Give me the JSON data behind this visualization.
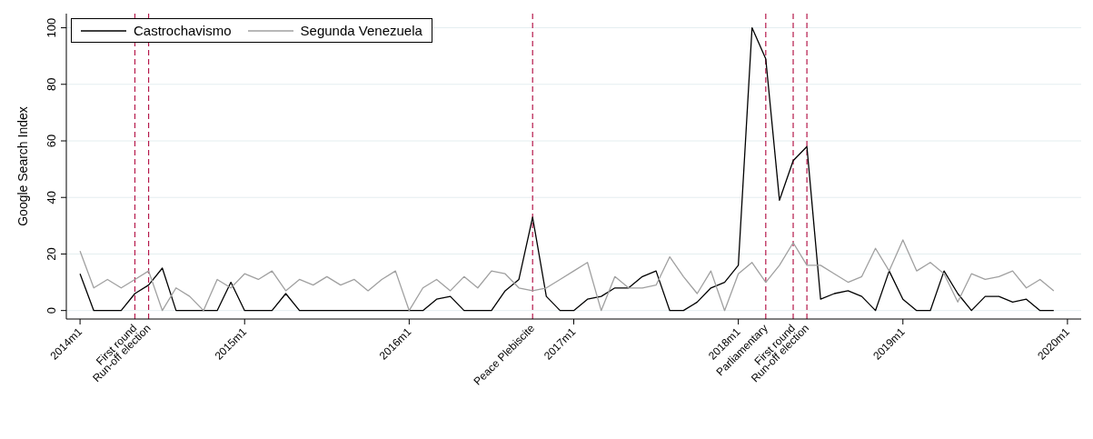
{
  "chart_data": {
    "type": "line",
    "ylabel": "Google Search Index",
    "x": [
      "2014-01",
      "2014-02",
      "2014-03",
      "2014-04",
      "2014-05",
      "2014-06",
      "2014-07",
      "2014-08",
      "2014-09",
      "2014-10",
      "2014-11",
      "2014-12",
      "2015-01",
      "2015-02",
      "2015-03",
      "2015-04",
      "2015-05",
      "2015-06",
      "2015-07",
      "2015-08",
      "2015-09",
      "2015-10",
      "2015-11",
      "2015-12",
      "2016-01",
      "2016-02",
      "2016-03",
      "2016-04",
      "2016-05",
      "2016-06",
      "2016-07",
      "2016-08",
      "2016-09",
      "2016-10",
      "2016-11",
      "2016-12",
      "2017-01",
      "2017-02",
      "2017-03",
      "2017-04",
      "2017-05",
      "2017-06",
      "2017-07",
      "2017-08",
      "2017-09",
      "2017-10",
      "2017-11",
      "2017-12",
      "2018-01",
      "2018-02",
      "2018-03",
      "2018-04",
      "2018-05",
      "2018-06",
      "2018-07",
      "2018-08",
      "2018-09",
      "2018-10",
      "2018-11",
      "2018-12",
      "2019-01",
      "2019-02",
      "2019-03",
      "2019-04",
      "2019-05",
      "2019-06",
      "2019-07",
      "2019-08",
      "2019-09",
      "2019-10",
      "2019-11",
      "2019-12"
    ],
    "series": [
      {
        "name": "Castrochavismo",
        "color": "#000000",
        "values": [
          13,
          0,
          0,
          0,
          6,
          9,
          15,
          0,
          0,
          0,
          0,
          10,
          0,
          0,
          0,
          6,
          0,
          0,
          0,
          0,
          0,
          0,
          0,
          0,
          0,
          0,
          4,
          5,
          0,
          0,
          0,
          7,
          11,
          33,
          5,
          0,
          0,
          4,
          5,
          8,
          8,
          12,
          14,
          0,
          0,
          3,
          8,
          10,
          16,
          100,
          89,
          39,
          53,
          58,
          4,
          6,
          7,
          5,
          0,
          14,
          4,
          0,
          0,
          14,
          6,
          0,
          5,
          5,
          3,
          4,
          0,
          0
        ]
      },
      {
        "name": "Segunda Venezuela",
        "color": "#a0a0a0",
        "values": [
          21,
          8,
          11,
          8,
          11,
          14,
          0,
          8,
          5,
          0,
          11,
          8,
          13,
          11,
          14,
          7,
          11,
          9,
          12,
          9,
          11,
          7,
          11,
          14,
          0,
          8,
          11,
          7,
          12,
          8,
          14,
          13,
          8,
          7,
          8,
          11,
          14,
          17,
          0,
          12,
          8,
          8,
          9,
          19,
          12,
          6,
          14,
          0,
          13,
          17,
          10,
          16,
          24,
          16,
          16,
          13,
          10,
          12,
          22,
          14,
          25,
          14,
          17,
          13,
          3,
          13,
          11,
          12,
          14,
          8,
          11,
          7
        ]
      }
    ],
    "xlim": [
      "2013-12",
      "2020-02"
    ],
    "xticks": [
      {
        "value": "2014-01",
        "label": "2014m1"
      },
      {
        "value": "2015-01",
        "label": "2015m1"
      },
      {
        "value": "2016-01",
        "label": "2016m1"
      },
      {
        "value": "2017-01",
        "label": "2017m1"
      },
      {
        "value": "2018-01",
        "label": "2018m1"
      },
      {
        "value": "2019-01",
        "label": "2019m1"
      },
      {
        "value": "2020-01",
        "label": "2020m1"
      }
    ],
    "ylim": [
      -3,
      105
    ],
    "yticks": [
      0,
      20,
      40,
      60,
      80,
      100
    ],
    "grid": "y",
    "legend": "top left",
    "marker": "none",
    "line_style": "solid",
    "ref_lines": [
      {
        "axis": "x",
        "value": "2014-05",
        "label": "First round",
        "color": "#b5174a",
        "line_style": "dashed"
      },
      {
        "axis": "x",
        "value": "2014-06",
        "label": "Run-off election",
        "color": "#b5174a",
        "line_style": "dashed"
      },
      {
        "axis": "x",
        "value": "2016-10",
        "label": "Peace Plebiscite",
        "color": "#b5174a",
        "line_style": "dashed"
      },
      {
        "axis": "x",
        "value": "2018-03",
        "label": "Parliamentary",
        "color": "#b5174a",
        "line_style": "dashed"
      },
      {
        "axis": "x",
        "value": "2018-05",
        "label": "First round",
        "color": "#b5174a",
        "line_style": "dashed"
      },
      {
        "axis": "x",
        "value": "2018-06",
        "label": "Run-off election",
        "color": "#b5174a",
        "line_style": "dashed"
      }
    ]
  }
}
